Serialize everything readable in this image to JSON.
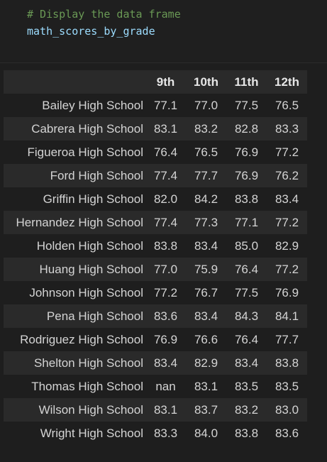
{
  "code_cell": {
    "comment": "# Display the data frame",
    "expression": "math_scores_by_grade"
  },
  "colors": {
    "comment": "#6a9955",
    "identifier": "#9cdcfe",
    "background": "#1f1f1f",
    "row_stripe": "#2a2a2a",
    "text": "#d4d4d4"
  },
  "dataframe": {
    "index_header": "",
    "columns": [
      "9th",
      "10th",
      "11th",
      "12th"
    ],
    "rows": [
      {
        "school": "Bailey High School",
        "values": [
          "77.1",
          "77.0",
          "77.5",
          "76.5"
        ]
      },
      {
        "school": "Cabrera High School",
        "values": [
          "83.1",
          "83.2",
          "82.8",
          "83.3"
        ]
      },
      {
        "school": "Figueroa High School",
        "values": [
          "76.4",
          "76.5",
          "76.9",
          "77.2"
        ]
      },
      {
        "school": "Ford High School",
        "values": [
          "77.4",
          "77.7",
          "76.9",
          "76.2"
        ]
      },
      {
        "school": "Griffin High School",
        "values": [
          "82.0",
          "84.2",
          "83.8",
          "83.4"
        ]
      },
      {
        "school": "Hernandez High School",
        "values": [
          "77.4",
          "77.3",
          "77.1",
          "77.2"
        ]
      },
      {
        "school": "Holden High School",
        "values": [
          "83.8",
          "83.4",
          "85.0",
          "82.9"
        ]
      },
      {
        "school": "Huang High School",
        "values": [
          "77.0",
          "75.9",
          "76.4",
          "77.2"
        ]
      },
      {
        "school": "Johnson High School",
        "values": [
          "77.2",
          "76.7",
          "77.5",
          "76.9"
        ]
      },
      {
        "school": "Pena High School",
        "values": [
          "83.6",
          "83.4",
          "84.3",
          "84.1"
        ]
      },
      {
        "school": "Rodriguez High School",
        "values": [
          "76.9",
          "76.6",
          "76.4",
          "77.7"
        ]
      },
      {
        "school": "Shelton High School",
        "values": [
          "83.4",
          "82.9",
          "83.4",
          "83.8"
        ]
      },
      {
        "school": "Thomas High School",
        "values": [
          "nan",
          "83.1",
          "83.5",
          "83.5"
        ]
      },
      {
        "school": "Wilson High School",
        "values": [
          "83.1",
          "83.7",
          "83.2",
          "83.0"
        ]
      },
      {
        "school": "Wright High School",
        "values": [
          "83.3",
          "84.0",
          "83.8",
          "83.6"
        ]
      }
    ]
  }
}
